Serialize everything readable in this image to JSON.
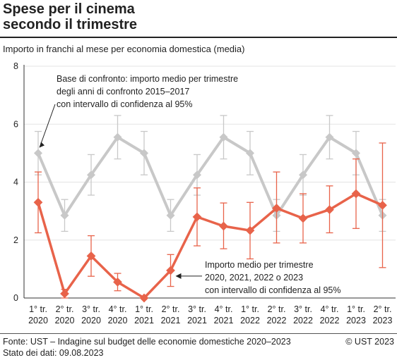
{
  "title_line1": "Spese per il cinema",
  "title_line2": "secondo il trimestre",
  "subtitle": "Importo in franchi al mese per economia domestica (media)",
  "source": "Fonte: UST – Indagine sul budget delle economie domestiche 2020–2023",
  "data_date": "Stato dei dati: 09.08.2023",
  "copyright": "© UST 2023",
  "colors": {
    "reference": "#c8c8c8",
    "current": "#e8634a",
    "axis": "#333333",
    "grid": "#e3e3e3"
  },
  "chart_data": {
    "type": "line",
    "ylim": [
      0,
      8
    ],
    "yticks": [
      0,
      2,
      4,
      6,
      8
    ],
    "categories": [
      [
        "1° tr.",
        "2020"
      ],
      [
        "2° tr.",
        "2020"
      ],
      [
        "3° tr.",
        "2020"
      ],
      [
        "4° tr.",
        "2020"
      ],
      [
        "1° tr.",
        "2021"
      ],
      [
        "2° tr.",
        "2021"
      ],
      [
        "3° tr.",
        "2021"
      ],
      [
        "4° tr.",
        "2021"
      ],
      [
        "1° tr.",
        "2022"
      ],
      [
        "2° tr.",
        "2022"
      ],
      [
        "3° tr.",
        "2022"
      ],
      [
        "4° tr.",
        "2022"
      ],
      [
        "1° tr.",
        "2023"
      ],
      [
        "2° tr.",
        "2023"
      ]
    ],
    "series": [
      {
        "key": "reference",
        "values": [
          5.0,
          2.85,
          4.25,
          5.55,
          5.0,
          2.85,
          4.25,
          5.55,
          5.0,
          2.85,
          4.25,
          5.55,
          5.0,
          2.85
        ],
        "low": [
          4.25,
          2.3,
          3.55,
          4.8,
          4.25,
          2.3,
          3.55,
          4.8,
          4.25,
          2.3,
          3.55,
          4.8,
          4.25,
          2.3
        ],
        "high": [
          5.75,
          3.4,
          4.95,
          6.3,
          5.75,
          3.4,
          4.95,
          6.3,
          5.75,
          3.4,
          4.95,
          6.3,
          5.75,
          3.4
        ]
      },
      {
        "key": "current",
        "values": [
          3.3,
          0.15,
          1.45,
          0.55,
          0.0,
          0.95,
          2.8,
          2.48,
          2.33,
          3.1,
          2.75,
          3.05,
          3.6,
          3.2
        ],
        "low": [
          2.25,
          0.0,
          0.75,
          0.25,
          0.0,
          0.4,
          1.8,
          1.7,
          1.35,
          1.9,
          1.9,
          2.25,
          2.4,
          1.05
        ],
        "high": [
          4.35,
          0.3,
          2.15,
          0.85,
          0.0,
          1.5,
          3.8,
          3.28,
          3.3,
          4.35,
          3.6,
          3.87,
          4.8,
          5.35
        ]
      }
    ],
    "annotations": {
      "reference": [
        "Base di confronto: importo medio per trimestre",
        "degli anni di confronto 2015–2017",
        "con intervallo di confidenza al 95%"
      ],
      "current": [
        "Importo medio per trimestre",
        "2020, 2021, 2022 o 2023",
        "con intervallo di confidenza al 95%"
      ]
    }
  }
}
